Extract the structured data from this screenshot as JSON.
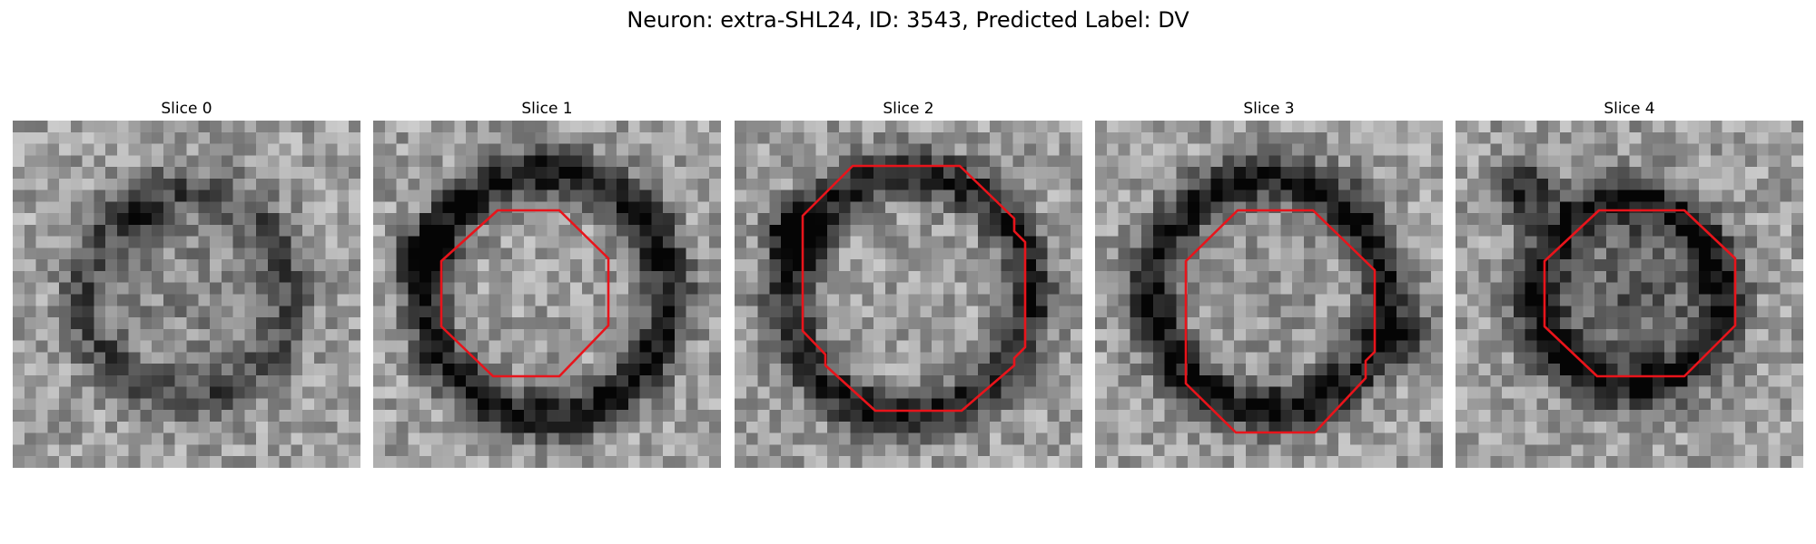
{
  "figure": {
    "title": "Neuron: extra-SHL24, ID: 3543, Predicted Label: DV"
  },
  "roi_color": "#e8141b",
  "panels": [
    {
      "title": "Slice 0",
      "has_roi": false,
      "ring": 0.3,
      "ring_radius": 0.35,
      "center_dark": 0.1,
      "blob": [
        0.35,
        0.25,
        0.25
      ]
    },
    {
      "title": "Slice 1",
      "has_roi": true,
      "ring": 0.55,
      "ring_radius": 0.42,
      "center_dark": 0.0,
      "blob": [
        0.15,
        0.38,
        0.45
      ]
    },
    {
      "title": "Slice 2",
      "has_roi": true,
      "ring": 0.5,
      "ring_radius": 0.42,
      "center_dark": 0.0,
      "blob": [
        0.18,
        0.33,
        0.55
      ]
    },
    {
      "title": "Slice 3",
      "has_roi": true,
      "ring": 0.55,
      "ring_radius": 0.4,
      "center_dark": 0.05,
      "blob": [
        0.9,
        0.63,
        0.4
      ]
    },
    {
      "title": "Slice 4",
      "has_roi": true,
      "ring": 0.5,
      "ring_radius": 0.32,
      "center_dark": 0.25,
      "blob": [
        0.2,
        0.2,
        0.5
      ]
    }
  ]
}
